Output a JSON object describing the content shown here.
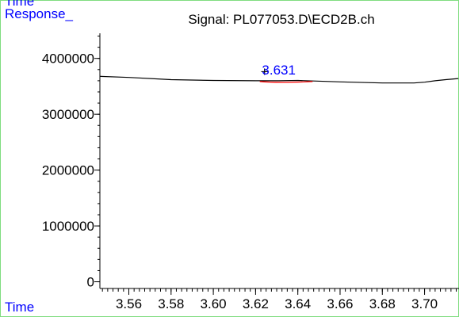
{
  "colors": {
    "frame": "#7fdc7f",
    "label_blue": "#0000ff",
    "signal": "#000000",
    "peak_marker": "#ff0000",
    "axis": "#000000"
  },
  "corner_label": "Time",
  "chart_data": {
    "type": "line",
    "title": "Signal: PL077053.D\\ECD2B.ch",
    "ylabel": "Response_",
    "xlabel": "Time",
    "xlim": [
      3.5463,
      3.7163
    ],
    "ylim": [
      -120000,
      4450000
    ],
    "x_ticks": [
      3.56,
      3.58,
      3.6,
      3.62,
      3.64,
      3.66,
      3.68,
      3.7
    ],
    "x_tick_labels": [
      "3.56",
      "3.58",
      "3.60",
      "3.62",
      "3.64",
      "3.66",
      "3.68",
      "3.70"
    ],
    "x_minor_step": 0.0025,
    "y_ticks": [
      0,
      1000000,
      2000000,
      3000000,
      4000000
    ],
    "y_tick_labels": [
      "0",
      "1000000",
      "2000000",
      "3000000",
      "4000000"
    ],
    "y_minor_step": 200000,
    "grid": false,
    "series": [
      {
        "x": [
          3.546,
          3.56,
          3.58,
          3.6,
          3.62,
          3.631,
          3.64,
          3.66,
          3.68,
          3.695,
          3.7,
          3.705,
          3.71,
          3.716
        ],
        "values": [
          3680000,
          3660000,
          3620000,
          3605000,
          3600000,
          3600000,
          3605000,
          3580000,
          3560000,
          3560000,
          3575000,
          3600000,
          3620000,
          3640000
        ]
      }
    ],
    "peak": {
      "label": "3.631",
      "marker": "+",
      "x": 3.631,
      "y": 3600000,
      "x_range": [
        3.622,
        3.647
      ]
    }
  }
}
